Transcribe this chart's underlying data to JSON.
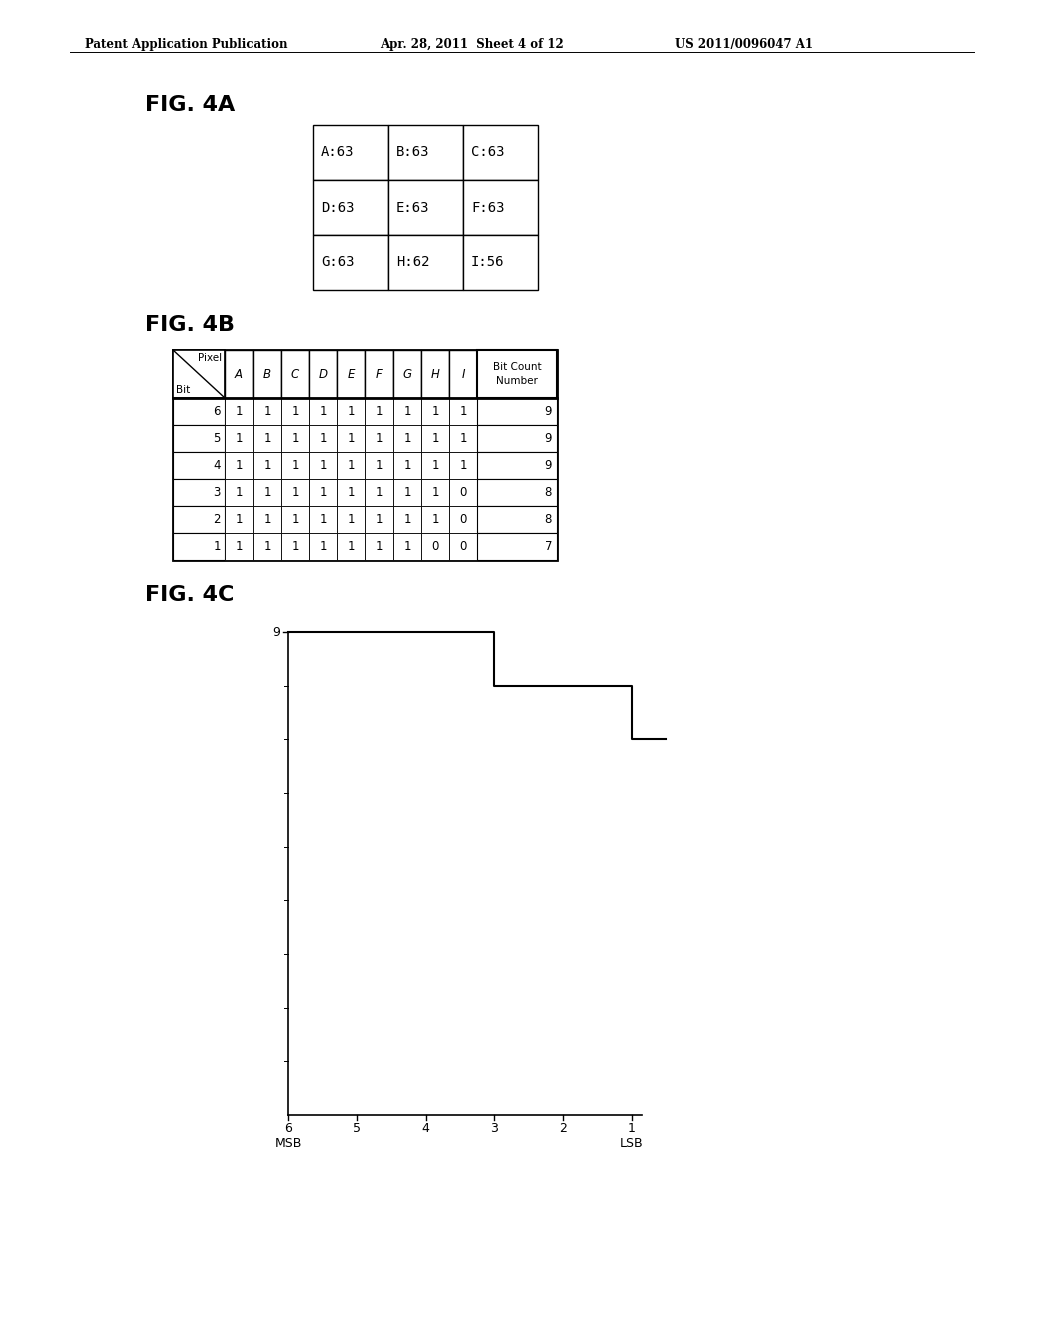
{
  "header_left": "Patent Application Publication",
  "header_mid": "Apr. 28, 2011  Sheet 4 of 12",
  "header_right": "US 2011/0096047 A1",
  "fig4a_label": "FIG. 4A",
  "fig4b_label": "FIG. 4B",
  "fig4c_label": "FIG. 4C",
  "fig4a_cells": [
    [
      "A:63",
      "B:63",
      "C:63"
    ],
    [
      "D:63",
      "E:63",
      "F:63"
    ],
    [
      "G:63",
      "H:62",
      "I:56"
    ]
  ],
  "fig4b_pixels": [
    "A",
    "B",
    "C",
    "D",
    "E",
    "F",
    "G",
    "H",
    "I"
  ],
  "fig4b_bits": [
    6,
    5,
    4,
    3,
    2,
    1
  ],
  "fig4b_data": [
    [
      1,
      1,
      1,
      1,
      1,
      1,
      1,
      1,
      1
    ],
    [
      1,
      1,
      1,
      1,
      1,
      1,
      1,
      1,
      1
    ],
    [
      1,
      1,
      1,
      1,
      1,
      1,
      1,
      1,
      1
    ],
    [
      1,
      1,
      1,
      1,
      1,
      1,
      1,
      1,
      0
    ],
    [
      1,
      1,
      1,
      1,
      1,
      1,
      1,
      1,
      0
    ],
    [
      1,
      1,
      1,
      1,
      1,
      1,
      1,
      0,
      0
    ]
  ],
  "fig4b_counts": [
    9,
    9,
    9,
    8,
    8,
    7
  ],
  "fig4c_x": [
    6,
    5,
    4,
    3,
    2,
    1
  ],
  "fig4c_y": [
    9,
    9,
    9,
    8,
    8,
    7
  ],
  "fig4c_xlabel_msb": "MSB",
  "fig4c_xlabel_lsb": "LSB",
  "background_color": "#ffffff",
  "text_color": "#000000",
  "line_color": "#000000"
}
